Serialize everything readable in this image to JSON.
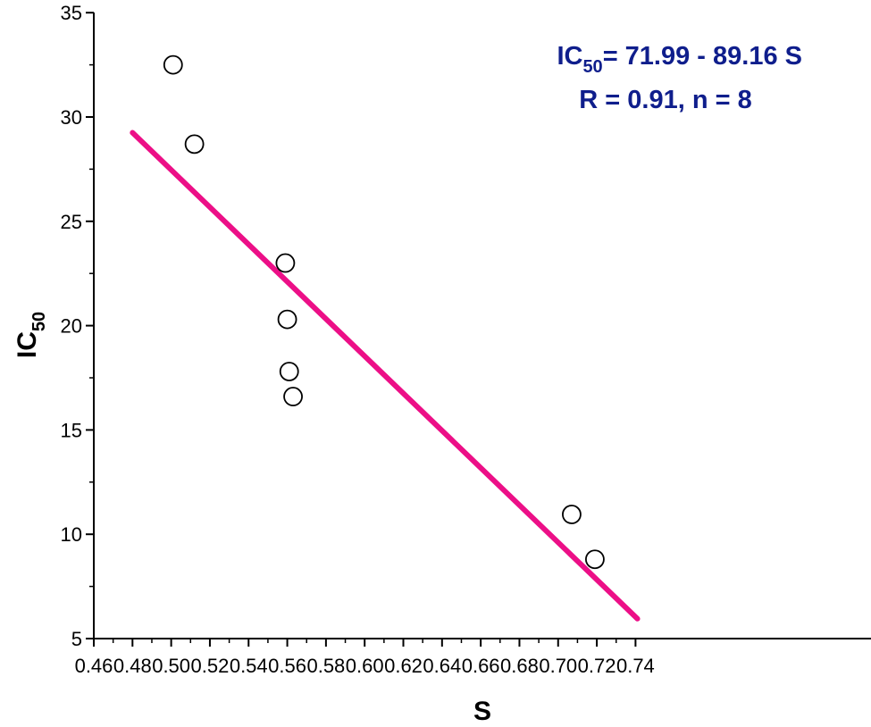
{
  "chart_data": {
    "type": "scatter",
    "xlabel": "S",
    "ylabel": {
      "base": "IC",
      "subscript": "50"
    },
    "xlim": [
      0.46,
      0.74
    ],
    "ylim": [
      5,
      35
    ],
    "xticks": [
      "0.46",
      "0.48",
      "0.50",
      "0.52",
      "0.54",
      "0.56",
      "0.58",
      "0.60",
      "0.62",
      "0.64",
      "0.66",
      "0.68",
      "0.70",
      "0.72",
      "0.74"
    ],
    "yticks": [
      "5",
      "10",
      "15",
      "20",
      "25",
      "30",
      "35"
    ],
    "grid": false,
    "points": [
      {
        "x": 0.501,
        "y": 32.5
      },
      {
        "x": 0.512,
        "y": 28.7
      },
      {
        "x": 0.559,
        "y": 23.0
      },
      {
        "x": 0.56,
        "y": 20.3
      },
      {
        "x": 0.561,
        "y": 17.8
      },
      {
        "x": 0.563,
        "y": 16.6
      },
      {
        "x": 0.707,
        "y": 10.95
      },
      {
        "x": 0.719,
        "y": 8.8
      }
    ],
    "fit_line": {
      "x_start": 0.48,
      "y_start": 29.25,
      "x_end": 0.741,
      "y_end": 5.95,
      "color": "#ec0f87"
    },
    "annotation": {
      "line1_base": "IC",
      "line1_sub": "50",
      "line1_rest": "= 71.99 - 89.16 S",
      "line2": "R = 0.91, n = 8",
      "color": "#0f1e8c"
    },
    "marker_style": "open-circle"
  }
}
